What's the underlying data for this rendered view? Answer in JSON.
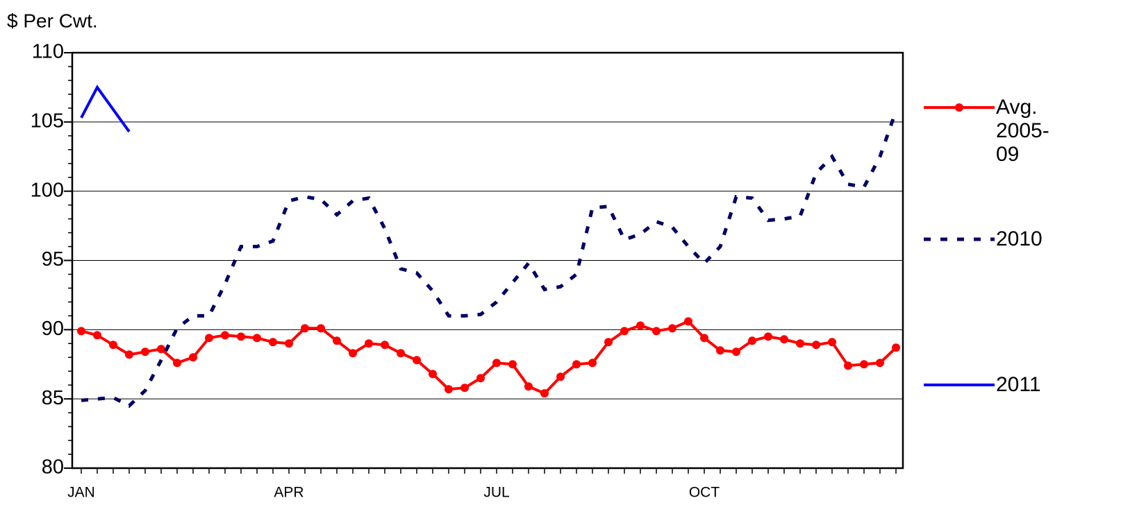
{
  "chart_data": {
    "type": "line",
    "y_label": "$ Per Cwt.",
    "categories": [
      "JAN",
      null,
      null,
      null,
      null,
      null,
      null,
      null,
      null,
      null,
      null,
      null,
      null,
      "APR",
      null,
      null,
      null,
      null,
      null,
      null,
      null,
      null,
      null,
      null,
      null,
      null,
      "JUL",
      null,
      null,
      null,
      null,
      null,
      null,
      null,
      null,
      null,
      null,
      null,
      null,
      "OCT",
      null,
      null,
      null,
      null,
      null,
      null,
      null,
      null,
      null,
      null,
      null,
      null
    ],
    "ylim": [
      80,
      110
    ],
    "yticks": [
      80,
      85,
      90,
      95,
      100,
      105,
      110
    ],
    "grid": true,
    "series": [
      {
        "name": "Avg. 2005-09",
        "color": "#ff0000",
        "style": "solid-markers",
        "values": [
          89.9,
          89.6,
          88.9,
          88.2,
          88.4,
          88.6,
          87.6,
          88.0,
          89.4,
          89.6,
          89.5,
          89.4,
          89.1,
          89.0,
          90.1,
          90.1,
          89.2,
          88.3,
          89.0,
          88.9,
          88.3,
          87.8,
          86.8,
          85.7,
          85.8,
          86.5,
          87.6,
          87.5,
          85.9,
          85.4,
          86.6,
          87.5,
          87.6,
          89.1,
          89.9,
          90.3,
          89.9,
          90.1,
          90.6,
          89.4,
          88.5,
          88.4,
          89.2,
          89.5,
          89.3,
          89.0,
          88.9,
          89.1,
          87.4,
          87.5,
          87.6,
          88.7
        ]
      },
      {
        "name": "2010",
        "color": "#000066",
        "style": "dashed",
        "values": [
          84.9,
          85.0,
          85.1,
          84.5,
          85.6,
          87.8,
          90.1,
          91.0,
          91.0,
          93.3,
          96.0,
          96.0,
          96.4,
          99.3,
          99.6,
          99.4,
          98.3,
          99.3,
          99.5,
          97.3,
          94.4,
          94.1,
          92.8,
          91.0,
          91.0,
          91.1,
          92.0,
          93.4,
          94.8,
          92.9,
          93.1,
          94.0,
          98.8,
          98.9,
          96.5,
          96.9,
          97.8,
          97.4,
          96.0,
          94.8,
          96.0,
          99.6,
          99.5,
          97.9,
          98.0,
          98.2,
          101.3,
          102.5,
          100.5,
          100.3,
          102.5,
          105.8
        ]
      },
      {
        "name": "2011",
        "color": "#0000ff",
        "style": "solid",
        "values": [
          105.3,
          107.5,
          105.9,
          104.3,
          null,
          null,
          null,
          null,
          null,
          null,
          null,
          null,
          null,
          null,
          null,
          null,
          null,
          null,
          null,
          null,
          null,
          null,
          null,
          null,
          null,
          null,
          null,
          null,
          null,
          null,
          null,
          null,
          null,
          null,
          null,
          null,
          null,
          null,
          null,
          null,
          null,
          null,
          null,
          null,
          null,
          null,
          null,
          null,
          null,
          null,
          null,
          null
        ]
      }
    ]
  }
}
